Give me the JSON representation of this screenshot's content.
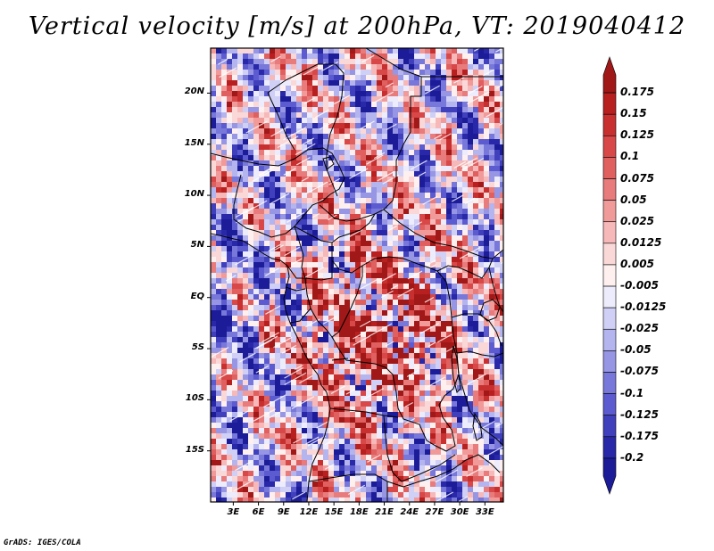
{
  "title": "Vertical velocity [m/s] at 200hPa, VT: 2019040412",
  "credit": "GrADS: IGES/COLA",
  "map": {
    "lat_labels": [
      "20N",
      "15N",
      "10N",
      "5N",
      "EQ",
      "5S",
      "10S",
      "15S"
    ],
    "lat_values": [
      20,
      15,
      10,
      5,
      0,
      -5,
      -10,
      -15
    ],
    "lon_labels": [
      "3E",
      "6E",
      "9E",
      "12E",
      "15E",
      "18E",
      "21E",
      "24E",
      "27E",
      "30E",
      "33E"
    ],
    "lon_values": [
      3,
      6,
      9,
      12,
      15,
      18,
      21,
      24,
      27,
      30,
      33
    ],
    "lat_range": [
      -20,
      24.4
    ],
    "lon_range": [
      0.3,
      35.2
    ]
  },
  "colorbar": {
    "labels": [
      "0.175",
      "0.15",
      "0.125",
      "0.1",
      "0.075",
      "0.05",
      "0.025",
      "0.0125",
      "0.005",
      "-0.005",
      "-0.0125",
      "-0.025",
      "-0.05",
      "-0.075",
      "-0.1",
      "-0.125",
      "-0.175",
      "-0.2"
    ],
    "colors": [
      "#a01818",
      "#b82020",
      "#c83030",
      "#d84848",
      "#e06060",
      "#e87c7c",
      "#f09a9a",
      "#f6b8b8",
      "#fad8d8",
      "#fff0f0",
      "#ececfc",
      "#d0d0f6",
      "#b4b4ee",
      "#9696e4",
      "#7878da",
      "#5c5cd0",
      "#4040bc",
      "#2828a8",
      "#1c1c98"
    ]
  }
}
